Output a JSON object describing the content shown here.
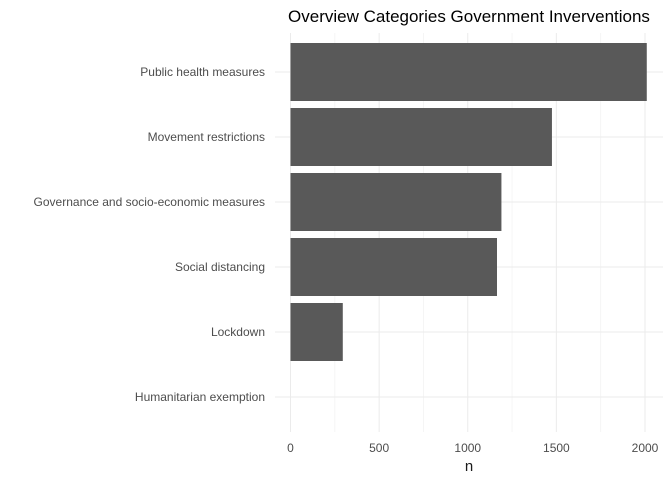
{
  "chart_data": {
    "type": "bar",
    "orientation": "horizontal",
    "title": "Overview Categories Government Inverventions",
    "xlabel": "n",
    "ylabel": "",
    "categories": [
      "Public health measures",
      "Movement restrictions",
      "Governance and socio-economic measures",
      "Social distancing",
      "Lockdown",
      "Humanitarian exemption"
    ],
    "values": [
      2010,
      1475,
      1190,
      1165,
      295,
      0
    ],
    "xlim": [
      0,
      2100
    ],
    "x_ticks": [
      0,
      500,
      1000,
      1500,
      2000
    ],
    "x_tick_labels": [
      "0",
      "500",
      "1000",
      "1500",
      "2000"
    ],
    "grid": true,
    "bar_color": "#595959"
  }
}
